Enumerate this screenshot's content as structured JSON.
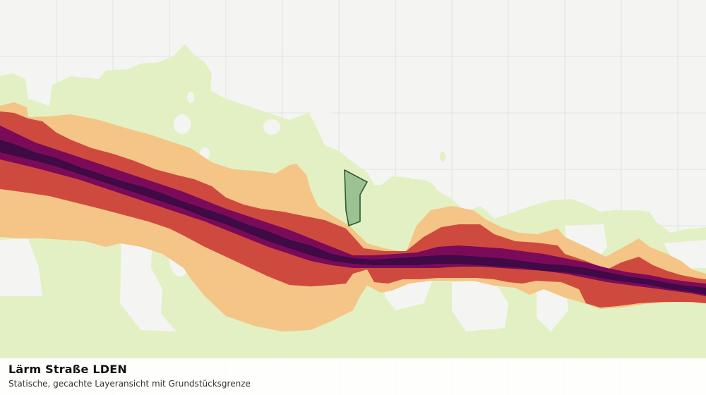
{
  "map": {
    "layer_name": "Lärm Straße LDEN",
    "description": "Statische, gecachte Layeransicht mit Grundstücksgrenze",
    "colors": {
      "background": "#f4f5f3",
      "grid": "#e2e4e1",
      "noise_low": "#e3f0c3",
      "noise_mid": "#f4c587",
      "noise_high": "#cf4a3e",
      "noise_very_high": "#7b0b58",
      "noise_max": "#3f0a45",
      "parcel_fill": "#8fb98a",
      "parcel_stroke": "#2d5a33"
    }
  }
}
